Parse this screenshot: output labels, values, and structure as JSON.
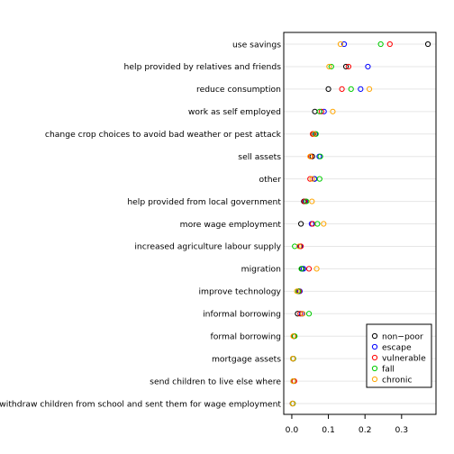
{
  "chart_data": {
    "type": "scatter",
    "categories": [
      "use savings",
      "help provided by relatives and friends",
      "reduce consumption",
      "work as self employed",
      "change crop choices to avoid bad weather or pest attack",
      "sell assets",
      "other",
      "help provided from local government",
      "more wage employment",
      "increased agriculture labour supply",
      "migration",
      "improve technology",
      "informal borrowing",
      "formal borrowing",
      "mortgage assets",
      "send children to live else where",
      "withdraw children from school and sent them for wage employment"
    ],
    "series": [
      {
        "name": "non−poor",
        "color": "#000000",
        "values": [
          0.372,
          0.148,
          0.1,
          0.063,
          0.058,
          0.056,
          0.062,
          0.033,
          0.025,
          0.022,
          0.028,
          0.018,
          0.016,
          0.006,
          0.003,
          0.004,
          0.002
        ]
      },
      {
        "name": "escape",
        "color": "#0000ff",
        "values": [
          0.143,
          0.208,
          0.188,
          0.088,
          0.064,
          0.075,
          0.062,
          0.037,
          0.054,
          0.023,
          0.032,
          0.022,
          0.028,
          0.005,
          0.004,
          0.006,
          0.002
        ]
      },
      {
        "name": "vulnerable",
        "color": "#ff0000",
        "values": [
          0.268,
          0.155,
          0.137,
          0.081,
          0.057,
          0.052,
          0.05,
          0.035,
          0.057,
          0.025,
          0.047,
          0.02,
          0.023,
          0.005,
          0.004,
          0.007,
          0.003
        ]
      },
      {
        "name": "fall",
        "color": "#00cc00",
        "values": [
          0.243,
          0.108,
          0.162,
          0.076,
          0.066,
          0.078,
          0.076,
          0.04,
          0.07,
          0.008,
          0.026,
          0.018,
          0.047,
          0.008,
          0.004,
          0.004,
          0.003
        ]
      },
      {
        "name": "chronic",
        "color": "#ffa500",
        "values": [
          0.133,
          0.102,
          0.212,
          0.112,
          0.061,
          0.05,
          0.056,
          0.055,
          0.087,
          0.02,
          0.068,
          0.014,
          0.03,
          0.004,
          0.003,
          0.004,
          0.002
        ]
      }
    ],
    "xticks": [
      0.0,
      0.1,
      0.2,
      0.3
    ],
    "xlim": [
      -0.022,
      0.394
    ],
    "grid": true,
    "legend_placement": "bottom-right"
  }
}
